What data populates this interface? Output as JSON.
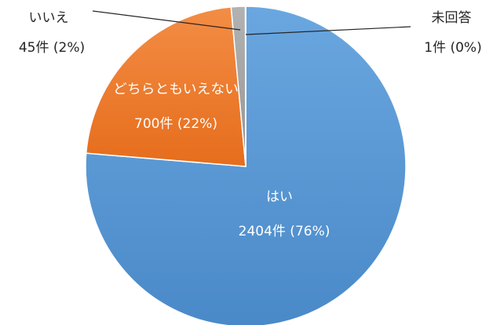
{
  "chart_data": {
    "type": "pie",
    "title": "",
    "slices": [
      {
        "label": "はい",
        "count": 2404,
        "percent": 76,
        "value_text": "2404件 (76%)",
        "color": "#5B9BD5"
      },
      {
        "label": "どちらともいえない",
        "count": 700,
        "percent": 22,
        "value_text": "700件 (22%)",
        "color": "#ED7D31"
      },
      {
        "label": "いいえ",
        "count": 45,
        "percent": 2,
        "value_text": "45件 (2%)",
        "color": "#A5A5A5"
      },
      {
        "label": "未回答",
        "count": 1,
        "percent": 0,
        "value_text": "1件 (0%)",
        "color": "#FFC000"
      }
    ],
    "start": "12 o'clock",
    "direction": "clockwise",
    "legend": "none"
  }
}
